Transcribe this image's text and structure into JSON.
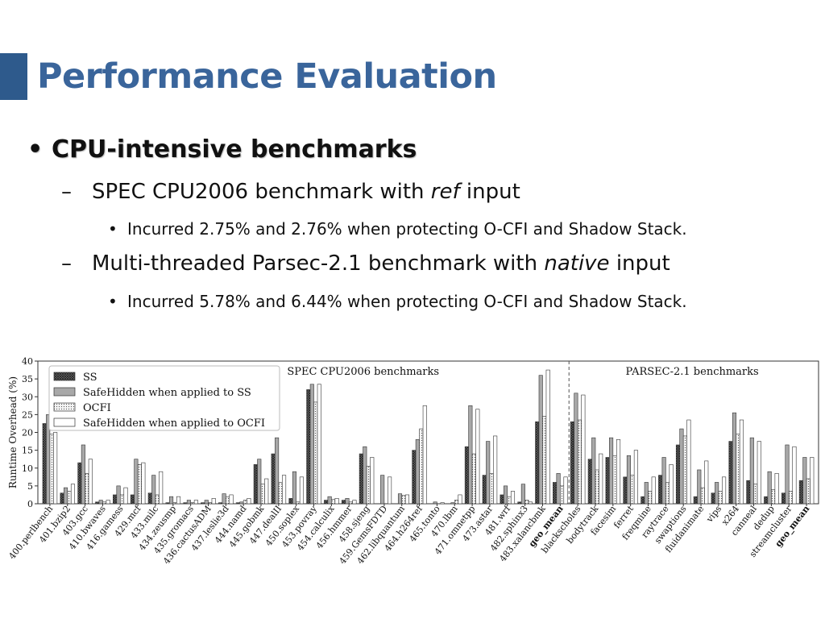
{
  "slide": {
    "title": "Performance Evaluation",
    "bullet1": "CPU-intensive benchmarks",
    "sub1_pre": "SPEC CPU2006 benchmark with ",
    "sub1_em": "ref",
    "sub1_post": " input",
    "sub1_detail": "Incurred 2.75% and 2.76% when protecting O-CFI and Shadow Stack.",
    "sub2_pre": "Multi-threaded Parsec-2.1 benchmark with ",
    "sub2_em": "native",
    "sub2_post": " input",
    "sub2_detail": "Incurred 5.78% and 6.44% when protecting O-CFI and Shadow Stack.",
    "accent_color": "#2e5a8c",
    "title_color": "#3a659b"
  },
  "chart_data": {
    "type": "bar",
    "ylabel": "Runtime Overhead (%)",
    "ylim": [
      0,
      40
    ],
    "yticks": [
      0,
      5,
      10,
      15,
      20,
      25,
      30,
      35,
      40
    ],
    "grid": false,
    "legend_position": "top-left",
    "groups": [
      {
        "label": "SPEC CPU2006 benchmarks",
        "count": 30
      },
      {
        "label": "PARSEC-2.1 benchmarks",
        "count": 14
      }
    ],
    "categories": [
      "400.perlbench",
      "401.bzip2",
      "403.gcc",
      "410.bwaves",
      "416.gamess",
      "429.mcf",
      "433.milc",
      "434.zeusmp",
      "435.gromacs",
      "436.cactusADM",
      "437.leslie3d",
      "444.namd",
      "445.gobmk",
      "447.dealII",
      "450.soplex",
      "453.povray",
      "454.calculix",
      "456.hmmer",
      "458.sjeng",
      "459.GemsFDTD",
      "462.libquantum",
      "464.h264ref",
      "465.tonto",
      "470.lbm",
      "471.omnetpp",
      "473.astar",
      "481.wrf",
      "482.sphinx3",
      "483.xalancbmk",
      "geo_mean",
      "blackscholes",
      "bodytrack",
      "facesim",
      "ferret",
      "freqmine",
      "raytrace",
      "swaptions",
      "fluidanimate",
      "vips",
      "x264",
      "canneal",
      "dedup",
      "streamcluster",
      "geo_mean"
    ],
    "bold_categories": [
      29,
      43
    ],
    "series": [
      {
        "name": "SS",
        "fill": "#555555",
        "pattern": "crosshatch",
        "values": [
          22.5,
          3,
          11.5,
          0.5,
          2.5,
          2.5,
          3,
          0.3,
          0.3,
          0.3,
          0.3,
          0.3,
          11,
          14,
          1.5,
          32,
          1,
          1,
          14,
          0,
          0,
          15,
          0,
          0,
          16,
          8,
          2.5,
          0.5,
          23,
          6,
          23,
          12.5,
          13,
          7.5,
          2,
          8,
          16.5,
          2,
          3,
          17.5,
          6.5,
          2,
          3,
          6.5
        ]
      },
      {
        "name": "SafeHidden when applied to SS",
        "fill": "#a8a8a8",
        "pattern": "solid",
        "values": [
          25,
          4.5,
          16.5,
          1,
          5,
          12.5,
          8,
          2,
          1,
          1,
          2.8,
          0.5,
          12.5,
          18.5,
          9,
          33.5,
          2,
          1.5,
          16,
          8,
          2.8,
          18,
          0.5,
          0.3,
          27.5,
          17.5,
          5,
          5.5,
          36,
          8.5,
          31,
          18.5,
          18.5,
          13.5,
          6,
          13,
          21,
          9.5,
          6,
          25.5,
          18.5,
          9,
          16.5,
          13
        ]
      },
      {
        "name": "OCFI",
        "fill": "#e2e2e2",
        "pattern": "dotted",
        "values": [
          19.5,
          3.5,
          8.5,
          0.5,
          2.5,
          11,
          2.5,
          0.3,
          0.3,
          0.3,
          2,
          1,
          5.5,
          6,
          0.5,
          28.5,
          1.2,
          0.5,
          10.5,
          0,
          2.3,
          21,
          0,
          1,
          14,
          8.5,
          2,
          1,
          24.5,
          5,
          23.5,
          9.5,
          13.5,
          8,
          3.5,
          6,
          19,
          4.5,
          3.5,
          19.5,
          5.5,
          4,
          3.5,
          7
        ]
      },
      {
        "name": "SafeHidden when applied to OCFI",
        "fill": "#ffffff",
        "pattern": "solid",
        "values": [
          20,
          5.5,
          12.5,
          1,
          4.5,
          11.5,
          9,
          2,
          1,
          1.5,
          2.5,
          1.5,
          7,
          8,
          7.5,
          33.5,
          1.5,
          1,
          13,
          7.5,
          2.5,
          27.5,
          0.3,
          2.5,
          26.5,
          19,
          3.5,
          0.5,
          37.5,
          7.5,
          30.5,
          14,
          18,
          15,
          7.5,
          11,
          23.5,
          12,
          7.5,
          23.5,
          17.5,
          8.5,
          16,
          13
        ]
      }
    ]
  }
}
